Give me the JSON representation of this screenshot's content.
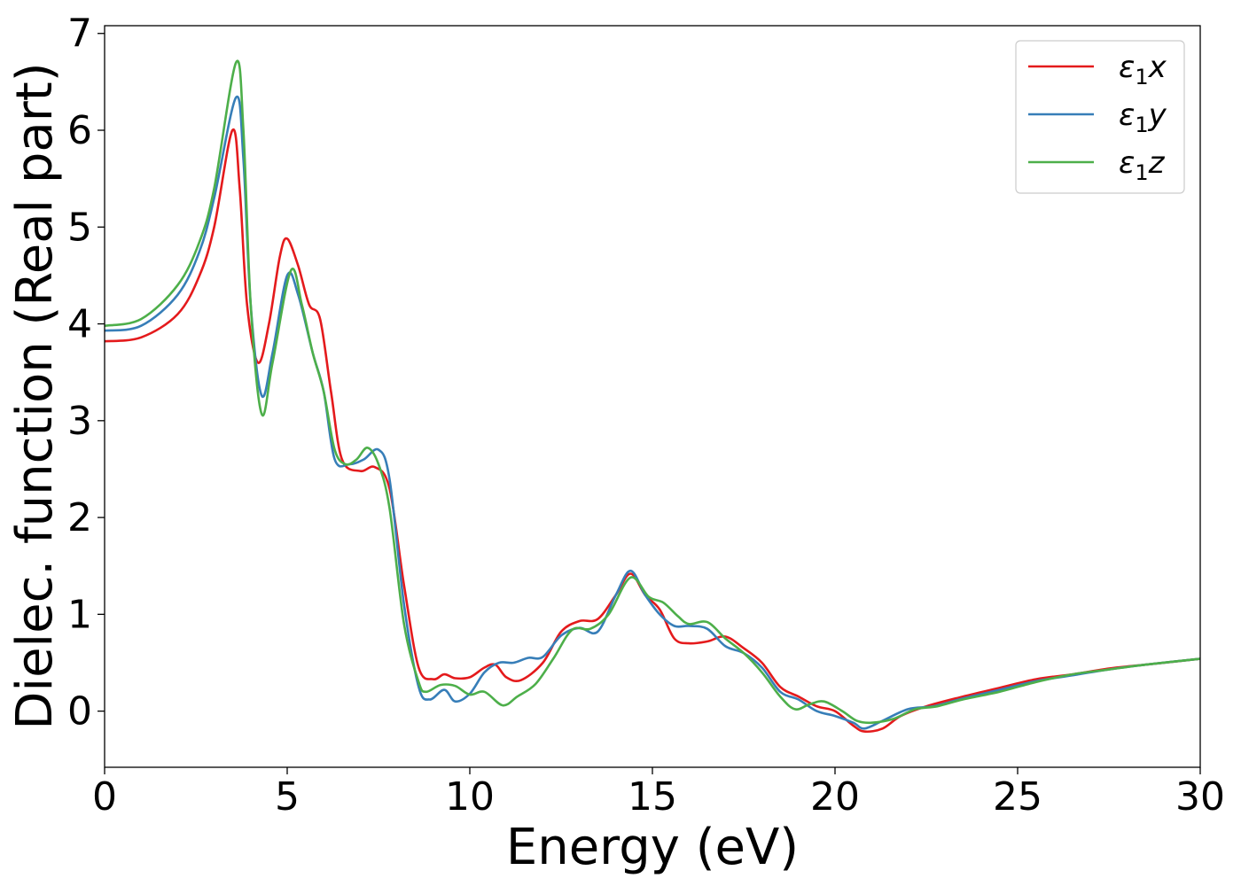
{
  "chart_data": {
    "type": "line",
    "xlabel": "Energy (eV)",
    "ylabel": "Dielec. function (Real part)",
    "xlim": [
      0,
      30
    ],
    "ylim": [
      -0.58,
      7.08
    ],
    "xticks": [
      0,
      5,
      10,
      15,
      20,
      25,
      30
    ],
    "yticks": [
      0,
      1,
      2,
      3,
      4,
      5,
      6,
      7
    ],
    "grid": false,
    "legend_position": "top-right",
    "series": [
      {
        "name": "ε₁x",
        "legend_base": "ε",
        "legend_sub": "1",
        "legend_var": "x",
        "color": "#e41a1c",
        "points": [
          [
            0,
            3.82
          ],
          [
            1,
            3.86
          ],
          [
            2,
            4.1
          ],
          [
            2.6,
            4.5
          ],
          [
            3.0,
            5.0
          ],
          [
            3.5,
            6.0
          ],
          [
            3.7,
            5.4
          ],
          [
            3.9,
            4.2
          ],
          [
            4.2,
            3.6
          ],
          [
            4.5,
            4.0
          ],
          [
            4.8,
            4.7
          ],
          [
            5.0,
            4.88
          ],
          [
            5.3,
            4.6
          ],
          [
            5.6,
            4.2
          ],
          [
            5.9,
            4.05
          ],
          [
            6.2,
            3.3
          ],
          [
            6.5,
            2.6
          ],
          [
            7.0,
            2.48
          ],
          [
            7.4,
            2.52
          ],
          [
            7.8,
            2.3
          ],
          [
            8.2,
            1.3
          ],
          [
            8.6,
            0.45
          ],
          [
            9.0,
            0.33
          ],
          [
            9.3,
            0.38
          ],
          [
            9.6,
            0.34
          ],
          [
            10.0,
            0.35
          ],
          [
            10.4,
            0.45
          ],
          [
            10.7,
            0.48
          ],
          [
            11.0,
            0.35
          ],
          [
            11.4,
            0.32
          ],
          [
            12.0,
            0.5
          ],
          [
            12.5,
            0.82
          ],
          [
            13.0,
            0.93
          ],
          [
            13.5,
            0.95
          ],
          [
            14.0,
            1.2
          ],
          [
            14.4,
            1.42
          ],
          [
            14.8,
            1.2
          ],
          [
            15.2,
            1.05
          ],
          [
            15.6,
            0.75
          ],
          [
            16.0,
            0.7
          ],
          [
            16.5,
            0.72
          ],
          [
            17.0,
            0.77
          ],
          [
            17.5,
            0.65
          ],
          [
            18.0,
            0.5
          ],
          [
            18.5,
            0.25
          ],
          [
            19.0,
            0.15
          ],
          [
            19.5,
            0.05
          ],
          [
            20.0,
            0.0
          ],
          [
            20.5,
            -0.15
          ],
          [
            20.8,
            -0.21
          ],
          [
            21.3,
            -0.18
          ],
          [
            21.8,
            -0.05
          ],
          [
            22.5,
            0.05
          ],
          [
            23.5,
            0.15
          ],
          [
            24.5,
            0.24
          ],
          [
            25.5,
            0.33
          ],
          [
            26.5,
            0.38
          ],
          [
            27.5,
            0.44
          ],
          [
            28.5,
            0.48
          ],
          [
            30,
            0.54
          ]
        ]
      },
      {
        "name": "ε₁y",
        "legend_base": "ε",
        "legend_sub": "1",
        "legend_var": "y",
        "color": "#377eb8",
        "points": [
          [
            0,
            3.93
          ],
          [
            1,
            3.98
          ],
          [
            2,
            4.3
          ],
          [
            2.6,
            4.75
          ],
          [
            3.0,
            5.3
          ],
          [
            3.6,
            6.34
          ],
          [
            3.8,
            5.7
          ],
          [
            4.0,
            4.2
          ],
          [
            4.3,
            3.26
          ],
          [
            4.6,
            3.7
          ],
          [
            5.0,
            4.5
          ],
          [
            5.3,
            4.3
          ],
          [
            5.7,
            3.7
          ],
          [
            6.0,
            3.3
          ],
          [
            6.3,
            2.6
          ],
          [
            6.7,
            2.55
          ],
          [
            7.1,
            2.6
          ],
          [
            7.5,
            2.7
          ],
          [
            7.8,
            2.4
          ],
          [
            8.2,
            1.1
          ],
          [
            8.6,
            0.25
          ],
          [
            8.9,
            0.12
          ],
          [
            9.3,
            0.22
          ],
          [
            9.6,
            0.1
          ],
          [
            10.0,
            0.18
          ],
          [
            10.4,
            0.4
          ],
          [
            10.8,
            0.5
          ],
          [
            11.2,
            0.5
          ],
          [
            11.6,
            0.55
          ],
          [
            12.0,
            0.56
          ],
          [
            12.5,
            0.78
          ],
          [
            13.0,
            0.86
          ],
          [
            13.5,
            0.82
          ],
          [
            14.0,
            1.2
          ],
          [
            14.4,
            1.45
          ],
          [
            14.8,
            1.2
          ],
          [
            15.2,
            1.0
          ],
          [
            15.6,
            0.88
          ],
          [
            16.0,
            0.88
          ],
          [
            16.5,
            0.85
          ],
          [
            17.0,
            0.67
          ],
          [
            17.5,
            0.6
          ],
          [
            18.0,
            0.45
          ],
          [
            18.5,
            0.2
          ],
          [
            19.0,
            0.12
          ],
          [
            19.5,
            0.0
          ],
          [
            20.0,
            -0.05
          ],
          [
            20.5,
            -0.12
          ],
          [
            20.8,
            -0.18
          ],
          [
            21.3,
            -0.1
          ],
          [
            22.0,
            0.02
          ],
          [
            22.7,
            0.05
          ],
          [
            23.5,
            0.13
          ],
          [
            24.5,
            0.22
          ],
          [
            25.5,
            0.31
          ],
          [
            26.5,
            0.37
          ],
          [
            27.5,
            0.43
          ],
          [
            28.5,
            0.48
          ],
          [
            30,
            0.54
          ]
        ]
      },
      {
        "name": "ε₁z",
        "legend_base": "ε",
        "legend_sub": "1",
        "legend_var": "z",
        "color": "#4daf4a",
        "points": [
          [
            0,
            3.98
          ],
          [
            1,
            4.05
          ],
          [
            2,
            4.4
          ],
          [
            2.6,
            4.85
          ],
          [
            3.0,
            5.4
          ],
          [
            3.6,
            6.7
          ],
          [
            3.8,
            6.0
          ],
          [
            4.0,
            4.2
          ],
          [
            4.3,
            3.07
          ],
          [
            4.6,
            3.6
          ],
          [
            5.1,
            4.55
          ],
          [
            5.4,
            4.2
          ],
          [
            5.7,
            3.7
          ],
          [
            6.0,
            3.3
          ],
          [
            6.3,
            2.7
          ],
          [
            6.6,
            2.55
          ],
          [
            6.9,
            2.6
          ],
          [
            7.2,
            2.72
          ],
          [
            7.5,
            2.55
          ],
          [
            7.8,
            2.1
          ],
          [
            8.2,
            0.9
          ],
          [
            8.6,
            0.3
          ],
          [
            8.8,
            0.2
          ],
          [
            9.2,
            0.27
          ],
          [
            9.6,
            0.26
          ],
          [
            10.0,
            0.17
          ],
          [
            10.4,
            0.2
          ],
          [
            10.9,
            0.06
          ],
          [
            11.3,
            0.15
          ],
          [
            11.8,
            0.28
          ],
          [
            12.3,
            0.55
          ],
          [
            12.8,
            0.84
          ],
          [
            13.3,
            0.85
          ],
          [
            13.8,
            1.0
          ],
          [
            14.4,
            1.38
          ],
          [
            14.9,
            1.18
          ],
          [
            15.3,
            1.12
          ],
          [
            15.7,
            0.98
          ],
          [
            16.0,
            0.9
          ],
          [
            16.5,
            0.92
          ],
          [
            17.0,
            0.75
          ],
          [
            17.5,
            0.6
          ],
          [
            18.0,
            0.4
          ],
          [
            18.5,
            0.15
          ],
          [
            18.9,
            0.02
          ],
          [
            19.3,
            0.07
          ],
          [
            19.7,
            0.1
          ],
          [
            20.2,
            0.0
          ],
          [
            20.6,
            -0.1
          ],
          [
            21.0,
            -0.12
          ],
          [
            21.6,
            -0.08
          ],
          [
            22.2,
            0.02
          ],
          [
            22.8,
            0.05
          ],
          [
            23.5,
            0.12
          ],
          [
            24.5,
            0.2
          ],
          [
            25.5,
            0.3
          ],
          [
            26.5,
            0.38
          ],
          [
            27.5,
            0.43
          ],
          [
            28.5,
            0.48
          ],
          [
            30,
            0.54
          ]
        ]
      }
    ]
  }
}
